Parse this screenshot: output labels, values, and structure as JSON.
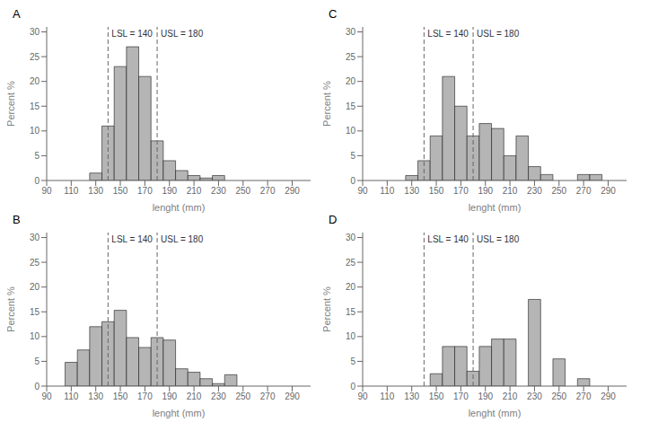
{
  "chart_data": [
    {
      "type": "bar",
      "title": "A",
      "xlabel": "lenght (mm)",
      "ylabel": "Percent %",
      "x": [
        125,
        135,
        145,
        155,
        165,
        175,
        185,
        195,
        205,
        215,
        225
      ],
      "values": [
        1.5,
        11.0,
        23.0,
        27.0,
        21.0,
        8.0,
        4.0,
        2.0,
        1.0,
        0.5,
        1.0
      ],
      "color": "#b5b5b5",
      "xlim": [
        90,
        305
      ],
      "xticks": [
        90,
        110,
        130,
        150,
        170,
        190,
        210,
        230,
        250,
        270,
        290
      ],
      "ylim": [
        0,
        31
      ],
      "yticks": [
        0,
        5,
        10,
        15,
        20,
        25,
        30
      ],
      "grid": false,
      "annotations": [
        {
          "type": "vline",
          "x": 140,
          "text": "LSL = 140",
          "color": "#666666",
          "line_style": "dashed"
        },
        {
          "type": "vline",
          "x": 180,
          "text": "USL = 180",
          "color": "#666666",
          "line_style": "dashed"
        }
      ]
    },
    {
      "type": "bar",
      "title": "C",
      "xlabel": "lenght (mm)",
      "ylabel": "Percent %",
      "x": [
        125,
        135,
        145,
        155,
        165,
        175,
        185,
        195,
        205,
        215,
        225,
        235,
        265,
        275,
        285
      ],
      "values": [
        1.0,
        4.0,
        9.0,
        21.0,
        15.0,
        9.0,
        11.5,
        10.5,
        5.0,
        9.0,
        2.8,
        1.2,
        1.2,
        1.2,
        0
      ],
      "color": "#b5b5b5",
      "xlim": [
        90,
        305
      ],
      "xticks": [
        90,
        110,
        130,
        150,
        170,
        190,
        210,
        230,
        250,
        270,
        290
      ],
      "ylim": [
        0,
        31
      ],
      "yticks": [
        0,
        5,
        10,
        15,
        20,
        25,
        30
      ],
      "grid": false,
      "annotations": [
        {
          "type": "vline",
          "x": 140,
          "text": "LSL = 140",
          "color": "#666666",
          "line_style": "dashed"
        },
        {
          "type": "vline",
          "x": 180,
          "text": "USL = 180",
          "color": "#666666",
          "line_style": "dashed"
        }
      ]
    },
    {
      "type": "bar",
      "title": "B",
      "xlabel": "lenght (mm)",
      "ylabel": "Percent %",
      "x": [
        105,
        115,
        125,
        135,
        145,
        155,
        165,
        175,
        185,
        195,
        205,
        215,
        225,
        235,
        245
      ],
      "values": [
        4.8,
        7.3,
        12.0,
        13.0,
        15.3,
        9.8,
        7.8,
        9.8,
        9.3,
        3.5,
        2.8,
        1.5,
        0.5,
        2.3,
        0
      ],
      "color": "#b5b5b5",
      "xlim": [
        90,
        305
      ],
      "xticks": [
        90,
        110,
        130,
        150,
        170,
        190,
        210,
        230,
        250,
        270,
        290
      ],
      "ylim": [
        0,
        31
      ],
      "yticks": [
        0,
        5,
        10,
        15,
        20,
        25,
        30
      ],
      "grid": false,
      "annotations": [
        {
          "type": "vline",
          "x": 140,
          "text": "LSL = 140",
          "color": "#666666",
          "line_style": "dashed"
        },
        {
          "type": "vline",
          "x": 180,
          "text": "USL = 180",
          "color": "#666666",
          "line_style": "dashed"
        }
      ]
    },
    {
      "type": "bar",
      "title": "D",
      "xlabel": "lenght (mm)",
      "ylabel": "Percent %",
      "x": [
        145,
        155,
        165,
        175,
        185,
        195,
        205,
        225,
        245,
        265
      ],
      "values": [
        2.5,
        8.0,
        8.0,
        3.0,
        8.0,
        9.5,
        9.5,
        17.5,
        5.5,
        1.5
      ],
      "color": "#b5b5b5",
      "xlim": [
        90,
        305
      ],
      "xticks": [
        90,
        110,
        130,
        150,
        170,
        190,
        210,
        230,
        250,
        270,
        290
      ],
      "ylim": [
        0,
        31
      ],
      "yticks": [
        0,
        5,
        10,
        15,
        20,
        25,
        30
      ],
      "grid": false,
      "annotations": [
        {
          "type": "vline",
          "x": 140,
          "text": "LSL = 140",
          "color": "#666666",
          "line_style": "dashed"
        },
        {
          "type": "vline",
          "x": 180,
          "text": "USL = 180",
          "color": "#666666",
          "line_style": "dashed"
        }
      ]
    }
  ]
}
